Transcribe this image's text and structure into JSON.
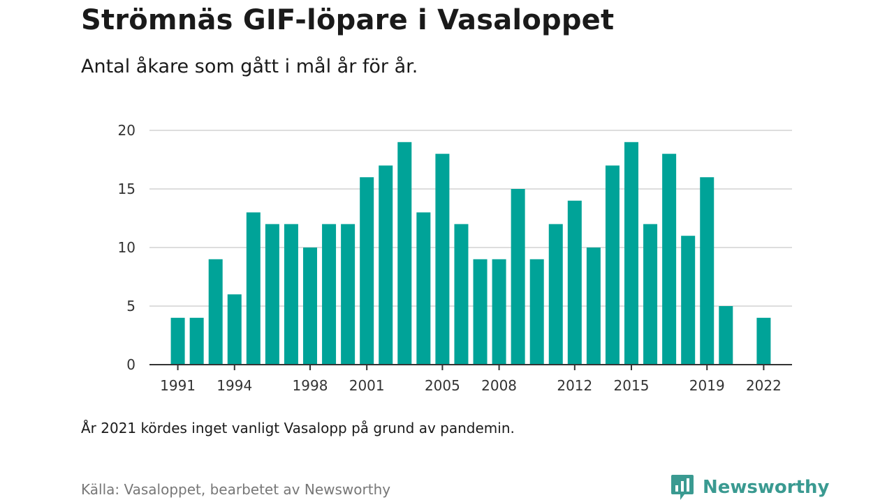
{
  "header": {
    "title": "Strömnäs GIF-löpare i Vasaloppet",
    "subtitle": "Antal åkare som gått i mål år för år."
  },
  "footer": {
    "note": "År 2021 kördes inget vanligt Vasalopp på grund av pandemin.",
    "source": "Källa: Vasaloppet, bearbetet av Newsworthy",
    "logo_text": "Newsworthy"
  },
  "colors": {
    "bar": "#00a398",
    "grid": "#dddddd",
    "axis": "#333333",
    "logo": "#3a9a91"
  },
  "chart_data": {
    "type": "bar",
    "title": "Strömnäs GIF-löpare i Vasaloppet",
    "subtitle": "Antal åkare som gått i mål år för år.",
    "xlabel": "",
    "ylabel": "",
    "ylim": [
      0,
      20
    ],
    "xlim": [
      1989.5,
      2023.5
    ],
    "y_ticks": [
      0,
      5,
      10,
      15,
      20
    ],
    "x_ticks": [
      1991,
      1994,
      1998,
      2001,
      2005,
      2008,
      2012,
      2015,
      2019,
      2022
    ],
    "grid": true,
    "categories": [
      1991,
      1992,
      1993,
      1994,
      1995,
      1996,
      1997,
      1998,
      1999,
      2000,
      2001,
      2002,
      2003,
      2004,
      2005,
      2006,
      2007,
      2008,
      2009,
      2010,
      2011,
      2012,
      2013,
      2014,
      2015,
      2016,
      2017,
      2018,
      2019,
      2020,
      2022
    ],
    "values": [
      4,
      4,
      9,
      6,
      13,
      12,
      12,
      10,
      12,
      12,
      16,
      17,
      19,
      13,
      18,
      12,
      9,
      9,
      15,
      9,
      12,
      14,
      10,
      17,
      19,
      12,
      18,
      11,
      16,
      5,
      4
    ]
  }
}
